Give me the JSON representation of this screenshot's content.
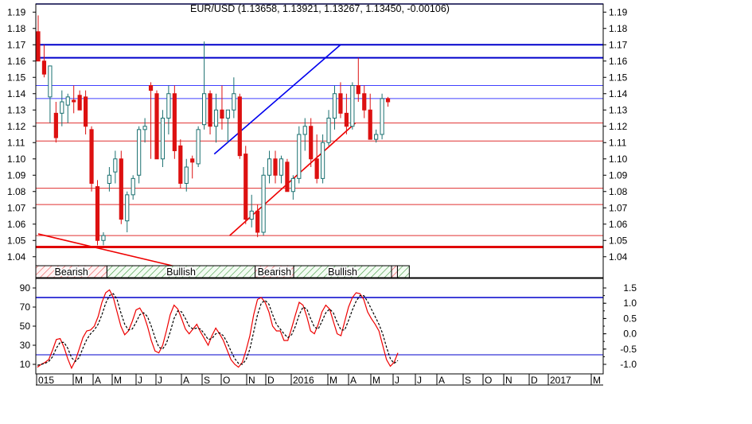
{
  "chart_data": [
    {
      "type": "candlestick",
      "title": "EUR/USD (1.13658, 1.13921, 1.13267, 1.13450, -0.00106)",
      "y_ticks": [
        "1.19",
        "1.18",
        "1.17",
        "1.16",
        "1.15",
        "1.14",
        "1.13",
        "1.12",
        "1.11",
        "1.10",
        "1.09",
        "1.08",
        "1.07",
        "1.06",
        "1.05",
        "1.04"
      ],
      "ylim": [
        1.035,
        1.195
      ],
      "horizontal_lines": [
        {
          "value": 1.195,
          "color": "#0000cc",
          "width": 1.5
        },
        {
          "value": 1.17,
          "color": "#0000cc",
          "width": 2
        },
        {
          "value": 1.162,
          "color": "#0000cc",
          "width": 2
        },
        {
          "value": 1.145,
          "color": "#4040ff",
          "width": 1
        },
        {
          "value": 1.137,
          "color": "#4040ff",
          "width": 1
        },
        {
          "value": 1.122,
          "color": "#e03030",
          "width": 1
        },
        {
          "value": 1.111,
          "color": "#e03030",
          "width": 1
        },
        {
          "value": 1.082,
          "color": "#e03030",
          "width": 1
        },
        {
          "value": 1.072,
          "color": "#e03030",
          "width": 1
        },
        {
          "value": 1.053,
          "color": "#e03030",
          "width": 1
        },
        {
          "value": 1.046,
          "color": "#e00000",
          "width": 3
        }
      ],
      "trend_lines": [
        {
          "from": [
            29.7,
            1.103
          ],
          "to": [
            51.0,
            1.17
          ],
          "color": "#0000ee"
        },
        {
          "from": [
            32.3,
            1.053
          ],
          "to": [
            53.5,
            1.122
          ],
          "color": "#ee0000"
        },
        {
          "from": [
            0.0,
            1.054
          ],
          "to": [
            25.5,
            1.032
          ],
          "color": "#ee0000"
        }
      ],
      "candles": [
        [
          1.178,
          1.188,
          1.16,
          1.16
        ],
        [
          1.16,
          1.17,
          1.15,
          1.152
        ],
        [
          1.138,
          1.157,
          1.122,
          1.157
        ],
        [
          1.128,
          1.135,
          1.11,
          1.113
        ],
        [
          1.128,
          1.142,
          1.12,
          1.135
        ],
        [
          1.133,
          1.14,
          1.122,
          1.138
        ],
        [
          1.136,
          1.145,
          1.128,
          1.135
        ],
        [
          1.139,
          1.142,
          1.13,
          1.13
        ],
        [
          1.138,
          1.142,
          1.115,
          1.12
        ],
        [
          1.118,
          1.12,
          1.08,
          1.085
        ],
        [
          1.083,
          1.087,
          1.047,
          1.05
        ],
        [
          1.05,
          1.055,
          1.047,
          1.053
        ],
        [
          1.085,
          1.095,
          1.08,
          1.09
        ],
        [
          1.092,
          1.105,
          1.085,
          1.1
        ],
        [
          1.1,
          1.105,
          1.06,
          1.063
        ],
        [
          1.062,
          1.08,
          1.055,
          1.078
        ],
        [
          1.078,
          1.09,
          1.075,
          1.088
        ],
        [
          1.09,
          1.12,
          1.085,
          1.118
        ],
        [
          1.118,
          1.125,
          1.11,
          1.12
        ],
        [
          1.145,
          1.147,
          1.1,
          1.142
        ],
        [
          1.14,
          1.142,
          1.1,
          1.1
        ],
        [
          1.1,
          1.13,
          1.095,
          1.125
        ],
        [
          1.125,
          1.145,
          1.115,
          1.14
        ],
        [
          1.14,
          1.145,
          1.1,
          1.105
        ],
        [
          1.108,
          1.112,
          1.082,
          1.085
        ],
        [
          1.085,
          1.1,
          1.08,
          1.095
        ],
        [
          1.1,
          1.102,
          1.088,
          1.098
        ],
        [
          1.097,
          1.12,
          1.095,
          1.118
        ],
        [
          1.121,
          1.172,
          1.118,
          1.14
        ],
        [
          1.14,
          1.142,
          1.115,
          1.12
        ],
        [
          1.12,
          1.14,
          1.11,
          1.13
        ],
        [
          1.13,
          1.145,
          1.118,
          1.125
        ],
        [
          1.125,
          1.13,
          1.11,
          1.13
        ],
        [
          1.13,
          1.15,
          1.125,
          1.14
        ],
        [
          1.138,
          1.14,
          1.1,
          1.102
        ],
        [
          1.103,
          1.108,
          1.06,
          1.063
        ],
        [
          1.063,
          1.078,
          1.058,
          1.068
        ],
        [
          1.068,
          1.072,
          1.052,
          1.055
        ],
        [
          1.055,
          1.095,
          1.053,
          1.09
        ],
        [
          1.09,
          1.105,
          1.085,
          1.1
        ],
        [
          1.1,
          1.105,
          1.085,
          1.09
        ],
        [
          1.09,
          1.102,
          1.085,
          1.1
        ],
        [
          1.098,
          1.1,
          1.08,
          1.08
        ],
        [
          1.08,
          1.09,
          1.075,
          1.088
        ],
        [
          1.088,
          1.12,
          1.085,
          1.115
        ],
        [
          1.115,
          1.125,
          1.105,
          1.12
        ],
        [
          1.12,
          1.125,
          1.095,
          1.1
        ],
        [
          1.1,
          1.115,
          1.085,
          1.088
        ],
        [
          1.088,
          1.115,
          1.085,
          1.11
        ],
        [
          1.11,
          1.13,
          1.108,
          1.125
        ],
        [
          1.125,
          1.145,
          1.118,
          1.14
        ],
        [
          1.14,
          1.147,
          1.125,
          1.128
        ],
        [
          1.128,
          1.14,
          1.115,
          1.12
        ],
        [
          1.12,
          1.147,
          1.118,
          1.145
        ],
        [
          1.145,
          1.162,
          1.135,
          1.14
        ],
        [
          1.14,
          1.145,
          1.125,
          1.13
        ],
        [
          1.13,
          1.14,
          1.112,
          1.112
        ],
        [
          1.112,
          1.118,
          1.11,
          1.115
        ],
        [
          1.115,
          1.14,
          1.112,
          1.137
        ],
        [
          1.137,
          1.138,
          1.132,
          1.135
        ]
      ],
      "regime_bar": {
        "segments": [
          {
            "label": "Bearish",
            "from": 0,
            "to": 12
          },
          {
            "label": "Bullish",
            "from": 12,
            "to": 37
          },
          {
            "label": "Bearish",
            "from": 37,
            "to": 43.5
          },
          {
            "label": "Bullish",
            "from": 43.5,
            "to": 60
          },
          {
            "label": "",
            "from": 60,
            "to": 61
          },
          {
            "label": "",
            "from": 61,
            "to": 63
          }
        ]
      }
    },
    {
      "type": "line",
      "title": "",
      "y_ticks_left": [
        "90",
        "70",
        "50",
        "30",
        "10"
      ],
      "y_ticks_right": [
        "1.5",
        "1.0",
        "0.5",
        "0.0",
        "-0.5",
        "-1.0"
      ],
      "ylim": [
        0,
        100
      ],
      "horizontal_lines": [
        {
          "value": 80,
          "color": "#0000cc",
          "width": 1.5
        },
        {
          "value": 20,
          "color": "#0000cc",
          "width": 1
        }
      ],
      "series": [
        {
          "style": "solid",
          "color": "#ee0000",
          "values": [
            7,
            10,
            12,
            15,
            25,
            36,
            37,
            28,
            16,
            6,
            14,
            26,
            38,
            45,
            46,
            50,
            60,
            75,
            85,
            88,
            80,
            65,
            50,
            41,
            45,
            55,
            67,
            69,
            62,
            50,
            35,
            24,
            22,
            30,
            45,
            62,
            72,
            68,
            58,
            47,
            42,
            47,
            52,
            44,
            37,
            30,
            40,
            48,
            42,
            35,
            25,
            15,
            10,
            7,
            12,
            25,
            40,
            62,
            78,
            80,
            75,
            65,
            50,
            45,
            45,
            35,
            35,
            48,
            62,
            75,
            72,
            60,
            45,
            42,
            52,
            65,
            72,
            68,
            55,
            42,
            40,
            55,
            70,
            80,
            85,
            84,
            78,
            65,
            58,
            52,
            45,
            30,
            15,
            8,
            12,
            22
          ]
        },
        {
          "style": "dashed",
          "color": "#000000",
          "values": [
            9,
            10,
            11,
            13,
            18,
            27,
            33,
            33,
            27,
            17,
            13,
            17,
            27,
            36,
            42,
            46,
            52,
            62,
            74,
            82,
            84,
            78,
            64,
            52,
            46,
            47,
            54,
            62,
            64,
            60,
            50,
            38,
            28,
            26,
            32,
            44,
            58,
            66,
            65,
            58,
            50,
            47,
            48,
            47,
            42,
            36,
            37,
            42,
            43,
            40,
            33,
            24,
            16,
            11,
            10,
            15,
            26,
            44,
            62,
            74,
            77,
            73,
            62,
            52,
            47,
            42,
            38,
            41,
            50,
            62,
            70,
            68,
            58,
            49,
            47,
            55,
            64,
            68,
            64,
            54,
            46,
            46,
            56,
            67,
            76,
            82,
            82,
            76,
            68,
            60,
            52,
            42,
            28,
            16,
            11,
            14
          ]
        }
      ]
    }
  ],
  "x_axis": {
    "labels": [
      "015",
      "M",
      "A",
      "M",
      "J",
      "J",
      "A",
      "S",
      "O",
      "N",
      "D",
      "2016",
      "M",
      "A",
      "M",
      "J",
      "J",
      "A",
      "S",
      "O",
      "N",
      "D",
      "2017",
      "M"
    ]
  }
}
